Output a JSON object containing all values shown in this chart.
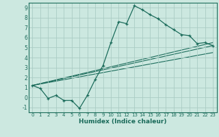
{
  "xlabel": "Humidex (Indice chaleur)",
  "bg_color": "#cce8e0",
  "grid_color": "#aaccc4",
  "line_color": "#1a6b5a",
  "xlim": [
    -0.5,
    23.5
  ],
  "ylim": [
    -1.5,
    9.5
  ],
  "xticks": [
    0,
    1,
    2,
    3,
    4,
    5,
    6,
    7,
    8,
    9,
    10,
    11,
    12,
    13,
    14,
    15,
    16,
    17,
    18,
    19,
    20,
    21,
    22,
    23
  ],
  "yticks": [
    -1,
    0,
    1,
    2,
    3,
    4,
    5,
    6,
    7,
    8,
    9
  ],
  "series1_x": [
    0,
    1,
    2,
    3,
    4,
    5,
    6,
    7,
    8,
    9,
    10,
    11,
    12,
    13,
    14,
    15,
    16,
    17,
    18,
    19,
    20,
    21,
    22,
    23
  ],
  "series1_y": [
    1.2,
    0.9,
    -0.1,
    0.2,
    -0.3,
    -0.3,
    -1.1,
    0.2,
    1.8,
    3.2,
    5.5,
    7.6,
    7.4,
    9.2,
    8.8,
    8.3,
    7.9,
    7.3,
    6.8,
    6.3,
    6.2,
    5.4,
    5.5,
    5.2
  ],
  "series2_x": [
    0,
    23
  ],
  "series2_y": [
    1.2,
    5.2
  ],
  "series3_x": [
    0,
    23
  ],
  "series3_y": [
    1.2,
    4.5
  ],
  "series4_x": [
    0,
    23
  ],
  "series4_y": [
    1.2,
    5.5
  ]
}
